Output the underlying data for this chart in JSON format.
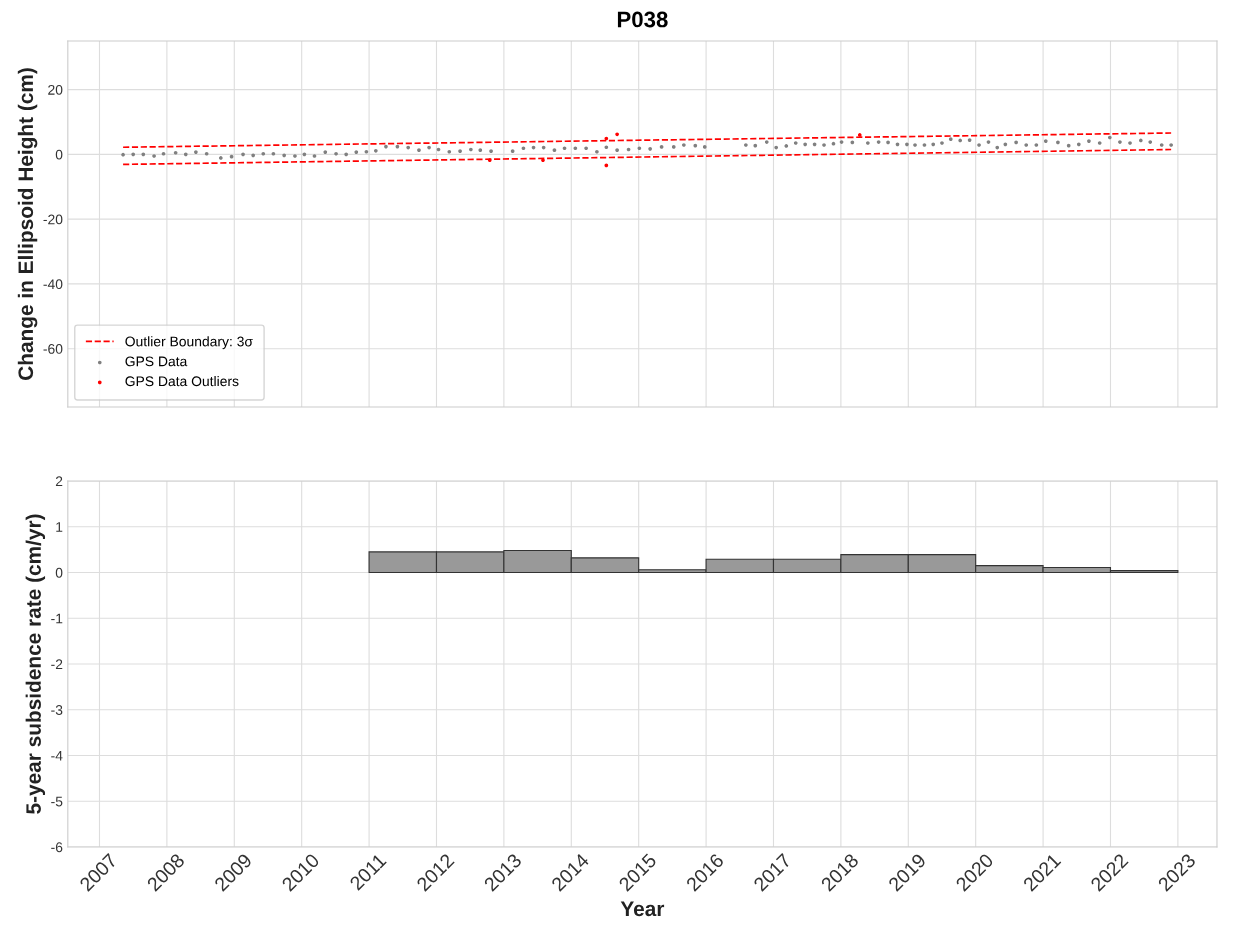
{
  "chart_data": [
    {
      "type": "scatter",
      "title": "P038",
      "ylabel": "Change in Ellipsoid Height (cm)",
      "xlim": [
        2006.53,
        2023.58
      ],
      "ylim": [
        -78,
        35
      ],
      "xticks": [
        2007,
        2008,
        2009,
        2010,
        2011,
        2012,
        2013,
        2014,
        2015,
        2016,
        2017,
        2018,
        2019,
        2020,
        2021,
        2022,
        2023
      ],
      "yticks": [
        -60,
        -40,
        -20,
        0,
        20
      ],
      "tick_labels": "y",
      "grid": true,
      "legend": "bottom left",
      "series": [
        {
          "name": "Outlier Boundary: 3σ",
          "type": "line",
          "line_style": "dashed",
          "marker": "none",
          "color": "#ff0000",
          "x": [
            2007.35,
            2022.9
          ],
          "values": [
            2.2,
            6.6
          ]
        },
        {
          "type": "line",
          "line_style": "dashed",
          "marker": "none",
          "color": "#ff0000",
          "x": [
            2007.35,
            2022.9
          ],
          "values": [
            -3.1,
            1.5
          ]
        },
        {
          "name": "GPS Data",
          "type": "scatter",
          "marker": "circle",
          "color": "#808080",
          "x": [
            2007.35,
            2007.5,
            2007.65,
            2007.81,
            2007.95,
            2008.13,
            2008.28,
            2008.43,
            2008.59,
            2008.8,
            2008.96,
            2009.13,
            2009.28,
            2009.43,
            2009.58,
            2009.74,
            2009.9,
            2010.04,
            2010.19,
            2010.35,
            2010.51,
            2010.66,
            2010.81,
            2010.96,
            2011.1,
            2011.25,
            2011.42,
            2011.58,
            2011.74,
            2011.89,
            2012.03,
            2012.19,
            2012.35,
            2012.51,
            2012.65,
            2012.81,
            2013.13,
            2013.29,
            2013.44,
            2013.59,
            2013.75,
            2013.9,
            2014.06,
            2014.22,
            2014.38,
            2014.52,
            2014.68,
            2014.85,
            2015.01,
            2015.17,
            2015.34,
            2015.52,
            2015.67,
            2015.84,
            2015.98,
            2016.59,
            2016.73,
            2016.9,
            2017.04,
            2017.19,
            2017.33,
            2017.47,
            2017.61,
            2017.75,
            2017.89,
            2018.01,
            2018.17,
            2018.4,
            2018.56,
            2018.7,
            2018.84,
            2018.98,
            2019.1,
            2019.24,
            2019.37,
            2019.5,
            2019.63,
            2019.77,
            2019.91,
            2020.05,
            2020.19,
            2020.32,
            2020.44,
            2020.6,
            2020.75,
            2020.9,
            2021.04,
            2021.22,
            2021.38,
            2021.53,
            2021.68,
            2021.84,
            2021.99,
            2022.14,
            2022.29,
            2022.45,
            2022.59,
            2022.76,
            2022.9
          ],
          "values": [
            -0.1,
            0,
            0,
            -0.5,
            0.2,
            0.5,
            0,
            0.7,
            0.2,
            -1.1,
            -0.7,
            0,
            -0.3,
            0.2,
            0.2,
            -0.3,
            -0.5,
            0,
            -0.5,
            0.7,
            0.2,
            0,
            0.7,
            0.8,
            1.1,
            2.4,
            2.4,
            2.1,
            1.3,
            2.1,
            1.5,
            0.8,
            1.0,
            1.5,
            1.3,
            1.0,
            1.0,
            1.9,
            2.1,
            2.1,
            1.3,
            1.9,
            1.9,
            1.9,
            0.8,
            2.2,
            1.3,
            1.5,
            1.9,
            1.7,
            2.3,
            2.3,
            2.9,
            2.7,
            2.3,
            2.9,
            2.7,
            3.8,
            2.1,
            2.6,
            3.5,
            3.1,
            3.1,
            2.9,
            3.3,
            3.8,
            3.7,
            3.5,
            3.8,
            3.7,
            3.1,
            3.1,
            2.9,
            2.9,
            3.1,
            3.5,
            4.7,
            4.3,
            4.4,
            2.9,
            3.8,
            2.1,
            3.1,
            3.7,
            2.9,
            2.9,
            4.1,
            3.7,
            2.7,
            3.1,
            4.1,
            3.5,
            5.2,
            3.8,
            3.5,
            4.3,
            3.8,
            2.9,
            2.9
          ]
        },
        {
          "name": "GPS Data Outliers",
          "type": "scatter",
          "marker": "circle",
          "color": "#ff0000",
          "x": [
            2012.79,
            2013.58,
            2014.52,
            2014.52,
            2014.68,
            2018.28
          ],
          "values": [
            -1.8,
            -1.8,
            4.9,
            -3.4,
            6.2,
            6.0
          ]
        }
      ]
    },
    {
      "type": "bar",
      "xlabel": "Year",
      "ylabel": "5-year subsidence rate (cm/yr)",
      "xlim": [
        2006.53,
        2023.58
      ],
      "ylim": [
        -6,
        2
      ],
      "xticks": [
        2007,
        2008,
        2009,
        2010,
        2011,
        2012,
        2013,
        2014,
        2015,
        2016,
        2017,
        2018,
        2019,
        2020,
        2021,
        2022,
        2023
      ],
      "yticks": [
        -6,
        -5,
        -4,
        -3,
        -2,
        -1,
        0,
        1,
        2
      ],
      "grid": true,
      "color": "#999999",
      "x": [
        2011.5,
        2012.5,
        2013.5,
        2014.5,
        2015.5,
        2016.5,
        2017.5,
        2018.5,
        2019.5,
        2020.5,
        2021.5,
        2022.5
      ],
      "values": [
        0.45,
        0.45,
        0.48,
        0.32,
        0.06,
        0.29,
        0.29,
        0.39,
        0.39,
        0.15,
        0.11,
        0.04
      ]
    }
  ]
}
